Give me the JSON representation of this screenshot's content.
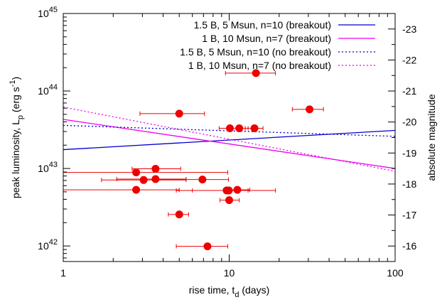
{
  "chart_data": {
    "type": "scatter",
    "xlabel": "rise time, t",
    "xlabel_sub": "d",
    "xlabel_unit": " (days)",
    "ylabel": "peak luminosity, L",
    "ylabel_sub": "p",
    "ylabel_unit": " (erg s",
    "ylabel_unit_sup": "-1",
    "ylabel_close": ")",
    "y2label": "absolute magnitude",
    "x_scale": "log",
    "y_scale": "log",
    "xlim": [
      1,
      100
    ],
    "ylim": [
      6.3e+41,
      1e+45
    ],
    "y2lim": [
      -15.5,
      -23.5
    ],
    "x_ticks": [
      {
        "value": 1,
        "label": "1"
      },
      {
        "value": 10,
        "label": "10"
      },
      {
        "value": 100,
        "label": "100"
      }
    ],
    "y_ticks": [
      {
        "value": 1e+42,
        "base": "10",
        "exp": "42"
      },
      {
        "value": 1e+43,
        "base": "10",
        "exp": "43"
      },
      {
        "value": 1e+44,
        "base": "10",
        "exp": "44"
      },
      {
        "value": 1e+45,
        "base": "10",
        "exp": "45"
      }
    ],
    "y2_ticks": [
      {
        "value": -16,
        "label": "-16"
      },
      {
        "value": -17,
        "label": "-17"
      },
      {
        "value": -18,
        "label": "-18"
      },
      {
        "value": -19,
        "label": "-19"
      },
      {
        "value": -20,
        "label": "-20"
      },
      {
        "value": -21,
        "label": "-21"
      },
      {
        "value": -22,
        "label": "-22"
      },
      {
        "value": -23,
        "label": "-23"
      }
    ],
    "legend_position": "top-right",
    "series": [
      {
        "name": "1.5 B, 5 Msun, n=10 (breakout)",
        "style": "solid",
        "color": "#0000cc",
        "x": [
          1,
          100
        ],
        "y": [
          1.75e+43,
          3.1e+43
        ]
      },
      {
        "name": "1 B, 10 Msun, n=7 (breakout)",
        "style": "solid",
        "color": "#ee00ee",
        "x": [
          1,
          100
        ],
        "y": [
          4.3e+43,
          1e+43
        ]
      },
      {
        "name": "1.5 B, 5 Msun, n=10 (no breakout)",
        "style": "dotted",
        "color": "#0000cc",
        "x": [
          1,
          100
        ],
        "y": [
          3.6e+43,
          2.6e+43
        ]
      },
      {
        "name": "1 B, 10 Msun, n=7 (no breakout)",
        "style": "dotted",
        "color": "#ee00ee",
        "x": [
          1,
          100
        ],
        "y": [
          6.2e+43,
          9.2e+42
        ]
      }
    ],
    "points": {
      "color": "#ee0000",
      "data": [
        {
          "x": 14.5,
          "y": 1.7e+44,
          "xmin": 9.5,
          "xmax": 19
        },
        {
          "x": 30.5,
          "y": 5.8e+43,
          "xmin": 24,
          "xmax": 37
        },
        {
          "x": 5.0,
          "y": 5.1e+43,
          "xmin": 2.9,
          "xmax": 7.1
        },
        {
          "x": 10.1,
          "y": 3.3e+43,
          "xmin": 8.7,
          "xmax": 11.5
        },
        {
          "x": 11.5,
          "y": 3.3e+43,
          "xmin": 10.0,
          "xmax": 13.0
        },
        {
          "x": 14.2,
          "y": 3.3e+43,
          "xmin": 12.5,
          "xmax": 16.0
        },
        {
          "x": 3.6,
          "y": 9.9e+42,
          "xmin": 2.6,
          "xmax": 5.1
        },
        {
          "x": 2.75,
          "y": 8.9e+42,
          "xmin": 1.0,
          "xmax": 9.8
        },
        {
          "x": 3.05,
          "y": 7.1e+42,
          "xmin": 1.7,
          "xmax": 5.5
        },
        {
          "x": 3.6,
          "y": 7.3e+42,
          "xmin": 2.1,
          "xmax": 5.5
        },
        {
          "x": 6.9,
          "y": 7.2e+42,
          "xmin": 3.7,
          "xmax": 9.9
        },
        {
          "x": 2.75,
          "y": 5.3e+42,
          "xmin": 1.0,
          "xmax": 5.0
        },
        {
          "x": 9.65,
          "y": 5.2e+42,
          "xmin": 6.0,
          "xmax": 13.0
        },
        {
          "x": 9.95,
          "y": 5.2e+42,
          "xmin": 4.8,
          "xmax": 19.0
        },
        {
          "x": 11.2,
          "y": 5.3e+42,
          "xmin": 9.3,
          "xmax": 13.3
        },
        {
          "x": 10.0,
          "y": 3.9e+42,
          "xmin": 8.8,
          "xmax": 11.5
        },
        {
          "x": 5.0,
          "y": 2.55e+42,
          "xmin": 4.3,
          "xmax": 5.7
        },
        {
          "x": 7.4,
          "y": 9.9e+41,
          "xmin": 4.8,
          "xmax": 9.8
        }
      ]
    }
  }
}
